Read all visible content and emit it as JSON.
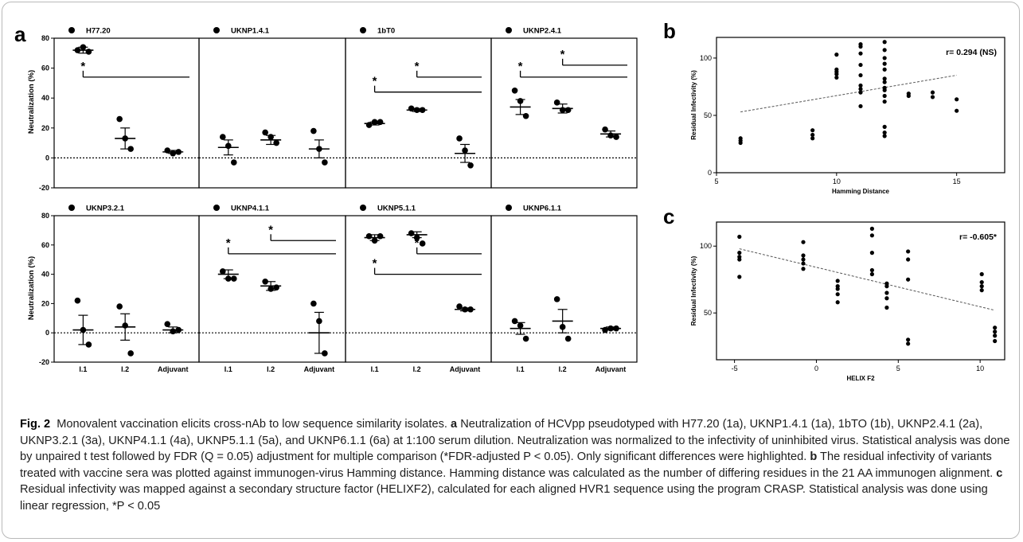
{
  "panel_a": {
    "letter": "a",
    "ylabel": "Neutralization (%)",
    "groups": [
      "I.1",
      "I.2",
      "Adjuvant"
    ],
    "top_yticks": [
      "80",
      "60",
      "40",
      "20",
      "0",
      "-20"
    ],
    "bottom_yticks": [
      "80",
      "60",
      "40",
      "20",
      "0",
      "-20"
    ],
    "sig_marker": "*"
  },
  "chart_data": [
    {
      "type": "scatter",
      "panel": "a",
      "row": "top",
      "ylim": [
        -20,
        80
      ],
      "categories": [
        "I.1",
        "I.2",
        "Adjuvant"
      ],
      "subpanels": [
        {
          "name": "H77.20",
          "points": [
            [
              72,
              74,
              71
            ],
            [
              26,
              13,
              6
            ],
            [
              5,
              3,
              4
            ]
          ],
          "mean": [
            72,
            13,
            4
          ],
          "err": [
            2,
            7,
            1
          ],
          "sig": [
            {
              "from": 0,
              "to": 2,
              "y": 54
            }
          ]
        },
        {
          "name": "UKNP1.4.1",
          "points": [
            [
              14,
              8,
              -3
            ],
            [
              17,
              14,
              10
            ],
            [
              18,
              6,
              -3
            ]
          ],
          "mean": [
            7,
            12,
            6
          ],
          "err": [
            5,
            3,
            6
          ],
          "sig": []
        },
        {
          "name": "1bT0",
          "points": [
            [
              22,
              24,
              24
            ],
            [
              33,
              32,
              32
            ],
            [
              13,
              5,
              -5
            ]
          ],
          "mean": [
            23,
            32,
            3
          ],
          "err": [
            1,
            1,
            6
          ],
          "sig": [
            {
              "from": 0,
              "to": 2,
              "y": 44
            },
            {
              "from": 1,
              "to": 2,
              "y": 54
            }
          ]
        },
        {
          "name": "UKNP2.4.1",
          "points": [
            [
              45,
              38,
              28
            ],
            [
              37,
              32,
              32
            ],
            [
              19,
              15,
              14
            ]
          ],
          "mean": [
            34,
            33,
            16
          ],
          "err": [
            5,
            3,
            2
          ],
          "sig": [
            {
              "from": 0,
              "to": 2,
              "y": 54
            },
            {
              "from": 1,
              "to": 2,
              "y": 62
            }
          ]
        }
      ]
    },
    {
      "type": "scatter",
      "panel": "a",
      "row": "bottom",
      "ylim": [
        -20,
        80
      ],
      "categories": [
        "I.1",
        "I.2",
        "Adjuvant"
      ],
      "subpanels": [
        {
          "name": "UKNP3.2.1",
          "points": [
            [
              22,
              2,
              -8
            ],
            [
              18,
              5,
              -14
            ],
            [
              6,
              1,
              2
            ]
          ],
          "mean": [
            2,
            4,
            2
          ],
          "err": [
            10,
            9,
            2
          ],
          "sig": []
        },
        {
          "name": "UKNP4.1.1",
          "points": [
            [
              42,
              37,
              37
            ],
            [
              35,
              30,
              31
            ],
            [
              20,
              8,
              -14
            ]
          ],
          "mean": [
            40,
            32,
            0
          ],
          "err": [
            3,
            3,
            14
          ],
          "sig": [
            {
              "from": 0,
              "to": 2,
              "y": 54
            },
            {
              "from": 1,
              "to": 2,
              "y": 63
            }
          ]
        },
        {
          "name": "UKNP5.1.1",
          "points": [
            [
              66,
              63,
              66
            ],
            [
              68,
              65,
              61
            ],
            [
              18,
              16,
              16
            ]
          ],
          "mean": [
            65,
            67,
            16
          ],
          "err": [
            2,
            2,
            1
          ],
          "sig": [
            {
              "from": 1,
              "to": 2,
              "y": 54
            },
            {
              "from": 0,
              "to": 2,
              "y": 40
            }
          ]
        },
        {
          "name": "UKNP6.1.1",
          "points": [
            [
              8,
              5,
              -4
            ],
            [
              23,
              4,
              -4
            ],
            [
              2,
              3,
              3
            ]
          ],
          "mean": [
            3,
            8,
            3
          ],
          "err": [
            4,
            8,
            1
          ],
          "sig": []
        }
      ]
    },
    {
      "type": "scatter",
      "panel": "b",
      "xlabel": "Hamming Distance",
      "ylabel": "Residual Infectivity (%)",
      "xlim": [
        5,
        17
      ],
      "ylim": [
        0,
        118
      ],
      "xticks": [
        5,
        10,
        15
      ],
      "yticks": [
        0,
        50,
        100
      ],
      "annotation": "r= 0.294 (NS)",
      "fit": {
        "x": [
          6,
          15
        ],
        "y": [
          53,
          85
        ]
      },
      "x": [
        6,
        6,
        6,
        9,
        9,
        9,
        10,
        10,
        10,
        10,
        10,
        11,
        11,
        11,
        11,
        11,
        11,
        11,
        11,
        11,
        12,
        12,
        12,
        12,
        12,
        12,
        12,
        12,
        12,
        12,
        12,
        12,
        12,
        12,
        13,
        13,
        14,
        14,
        15,
        15
      ],
      "y": [
        26,
        28,
        30,
        30,
        33,
        37,
        83,
        86,
        88,
        90,
        103,
        58,
        70,
        73,
        76,
        85,
        94,
        104,
        110,
        112,
        32,
        35,
        40,
        62,
        67,
        72,
        74,
        79,
        82,
        90,
        95,
        100,
        107,
        114,
        67,
        69,
        66,
        70,
        54,
        64
      ]
    },
    {
      "type": "scatter",
      "panel": "c",
      "xlabel": "HELIX F2",
      "ylabel": "Residual Infectivity (%)",
      "xlim": [
        -6.1,
        11.5
      ],
      "ylim": [
        15,
        118
      ],
      "xticks": [
        -5,
        0,
        5,
        10
      ],
      "yticks": [
        50,
        100
      ],
      "annotation": "r= -0.605*",
      "fit": {
        "x": [
          -4.7,
          10.9
        ],
        "y": [
          98,
          52
        ]
      },
      "x": [
        -4.7,
        -4.7,
        -4.7,
        -4.7,
        -4.7,
        -0.8,
        -0.8,
        -0.8,
        -0.8,
        -0.8,
        1.3,
        1.3,
        1.3,
        1.3,
        1.3,
        3.4,
        3.4,
        3.4,
        3.4,
        3.4,
        4.3,
        4.3,
        4.3,
        4.3,
        4.3,
        5.6,
        5.6,
        5.6,
        5.6,
        5.6,
        10.1,
        10.1,
        10.1,
        10.1,
        10.9,
        10.9,
        10.9,
        10.9
      ],
      "y": [
        107,
        95,
        92,
        90,
        77,
        103,
        93,
        90,
        87,
        83,
        74,
        70,
        68,
        64,
        58,
        113,
        108,
        95,
        82,
        79,
        72,
        70,
        65,
        61,
        54,
        96,
        90,
        75,
        30,
        27,
        79,
        73,
        70,
        67,
        39,
        36,
        33,
        29
      ]
    }
  ],
  "panel_b": {
    "letter": "b"
  },
  "panel_c": {
    "letter": "c"
  },
  "caption": {
    "fig_label": "Fig. 2",
    "title": "Monovalent vaccination elicits cross-nAb to low sequence similarity isolates.",
    "a_label": "a",
    "a_text": "Neutralization of HCVpp pseudotyped with H77.20 (1a), UKNP1.4.1 (1a), 1bTO (1b), UKNP2.4.1 (2a), UKNP3.2.1 (3a), UKNP4.1.1 (4a), UKNP5.1.1 (5a), and UKNP6.1.1 (6a) at 1:100 serum dilution. Neutralization was normalized to the infectivity of uninhibited virus. Statistical analysis was done by unpaired t test followed by FDR (Q = 0.05) adjustment for multiple comparison (*FDR-adjusted P < 0.05). Only significant differences were highlighted.",
    "b_label": "b",
    "b_text": "The residual infectivity of variants treated with vaccine sera was plotted against immunogen-virus Hamming distance. Hamming distance was calculated as the number of differing residues in the 21 AA immunogen alignment.",
    "c_label": "c",
    "c_text": "Residual infectivity was mapped against a secondary structure factor (HELIXF2), calculated for each aligned HVR1 sequence using the program CRASP. Statistical analysis was done using linear regression, *P < 0.05"
  }
}
